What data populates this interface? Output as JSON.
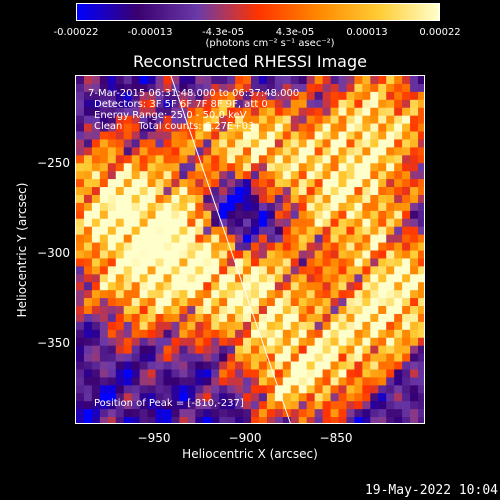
{
  "colorbar": {
    "tick_labels": [
      "-0.00022",
      "-0.00013",
      "-4.3e-05",
      "4.3e-05",
      "0.00013",
      "0.00022"
    ],
    "tick_values": [
      -0.00022,
      -0.00013,
      -4.3e-05,
      4.3e-05,
      0.00013,
      0.00022
    ],
    "range": [
      -0.00022,
      0.00022
    ],
    "units": "(photons cm⁻² s⁻¹ asec⁻²)",
    "colors": [
      "#0000ff",
      "#3a0070",
      "#6b3aa8",
      "#ff3300",
      "#ff8800",
      "#ffcc33",
      "#ffffcc"
    ]
  },
  "title": "Reconstructed RHESSI Image",
  "info": {
    "time": "7-Mar-2015 06:31:48.000 to 06:37:48.000",
    "detectors": "Detectors: 3F 5F 6F 7F 8F 9F, att 0",
    "energy": "Energy Range: 25.0 - 50.0 keV",
    "algorithm": "Clean     Total counts: 6.27E+03",
    "peak": "Position of Peak = [-810,-237]"
  },
  "axes": {
    "xlabel": "Heliocentric X (arcsec)",
    "ylabel": "Heliocentric Y (arcsec)",
    "xlim": [
      -995,
      -805
    ],
    "ylim": [
      -395,
      -205
    ],
    "xticks": [
      -950,
      -900,
      -850
    ],
    "xtick_labels": [
      "−950",
      "−900",
      "−850"
    ],
    "yticks": [
      -250,
      -300,
      -350
    ],
    "ytick_labels": [
      "−250",
      "−300",
      "−350"
    ]
  },
  "timestamp": "19-May-2022 10:04"
}
